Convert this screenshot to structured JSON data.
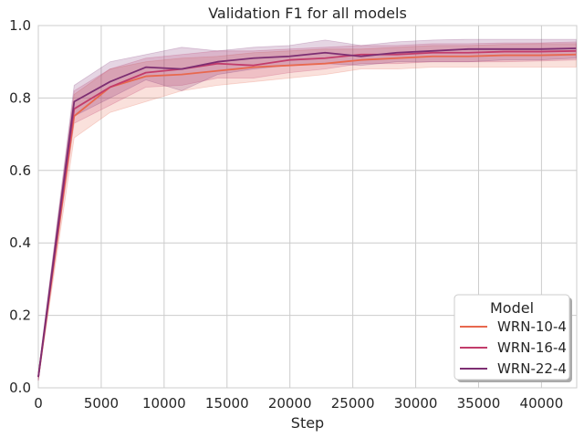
{
  "chart_data": {
    "type": "line",
    "title": "Validation F1 for all models",
    "xlabel": "Step",
    "ylabel": "",
    "xlim": [
      0,
      42800
    ],
    "ylim": [
      0,
      1.0
    ],
    "xticks": [
      0,
      5000,
      10000,
      15000,
      20000,
      25000,
      30000,
      35000,
      40000
    ],
    "yticks": [
      0.0,
      0.2,
      0.4,
      0.6,
      0.8,
      1.0
    ],
    "grid": true,
    "legend": {
      "title": "Model",
      "placement": "bottom-right"
    },
    "series": [
      {
        "name": "WRN-10-4",
        "color": "#e8684e",
        "band_opacity": 0.2,
        "x": [
          0,
          2850,
          5700,
          8550,
          11400,
          14250,
          17100,
          19950,
          22800,
          25650,
          28500,
          31350,
          34200,
          37050,
          39900,
          42750
        ],
        "y": [
          0.03,
          0.75,
          0.83,
          0.86,
          0.865,
          0.875,
          0.885,
          0.89,
          0.895,
          0.905,
          0.91,
          0.915,
          0.915,
          0.918,
          0.918,
          0.92
        ],
        "lower": [
          0.02,
          0.69,
          0.76,
          0.79,
          0.82,
          0.835,
          0.845,
          0.855,
          0.865,
          0.88,
          0.88,
          0.885,
          0.885,
          0.885,
          0.885,
          0.885
        ],
        "upper": [
          0.04,
          0.81,
          0.88,
          0.9,
          0.91,
          0.915,
          0.925,
          0.93,
          0.935,
          0.935,
          0.94,
          0.945,
          0.945,
          0.948,
          0.95,
          0.95
        ]
      },
      {
        "name": "WRN-16-4",
        "color": "#c23c6b",
        "band_opacity": 0.2,
        "x": [
          0,
          2850,
          5700,
          8550,
          11400,
          14250,
          17100,
          19950,
          22800,
          25650,
          28500,
          31350,
          34200,
          37050,
          39900,
          42750
        ],
        "y": [
          0.03,
          0.77,
          0.83,
          0.87,
          0.88,
          0.895,
          0.89,
          0.905,
          0.91,
          0.92,
          0.92,
          0.925,
          0.925,
          0.928,
          0.928,
          0.93
        ],
        "lower": [
          0.02,
          0.73,
          0.78,
          0.83,
          0.835,
          0.855,
          0.855,
          0.87,
          0.88,
          0.895,
          0.895,
          0.9,
          0.9,
          0.9,
          0.902,
          0.905
        ],
        "upper": [
          0.04,
          0.82,
          0.88,
          0.91,
          0.92,
          0.93,
          0.93,
          0.935,
          0.94,
          0.945,
          0.945,
          0.95,
          0.95,
          0.952,
          0.952,
          0.955
        ]
      },
      {
        "name": "WRN-22-4",
        "color": "#7d2e72",
        "band_opacity": 0.2,
        "x": [
          0,
          2850,
          5700,
          8550,
          11400,
          14250,
          17100,
          19950,
          22800,
          25650,
          28500,
          31350,
          34200,
          37050,
          39900,
          42750
        ],
        "y": [
          0.03,
          0.79,
          0.845,
          0.885,
          0.88,
          0.9,
          0.91,
          0.915,
          0.925,
          0.915,
          0.925,
          0.93,
          0.935,
          0.935,
          0.935,
          0.937
        ],
        "lower": [
          0.02,
          0.75,
          0.8,
          0.85,
          0.82,
          0.865,
          0.88,
          0.89,
          0.895,
          0.89,
          0.9,
          0.9,
          0.9,
          0.905,
          0.905,
          0.91
        ],
        "upper": [
          0.04,
          0.835,
          0.9,
          0.92,
          0.94,
          0.93,
          0.94,
          0.945,
          0.96,
          0.945,
          0.955,
          0.96,
          0.962,
          0.962,
          0.962,
          0.962
        ]
      }
    ]
  }
}
